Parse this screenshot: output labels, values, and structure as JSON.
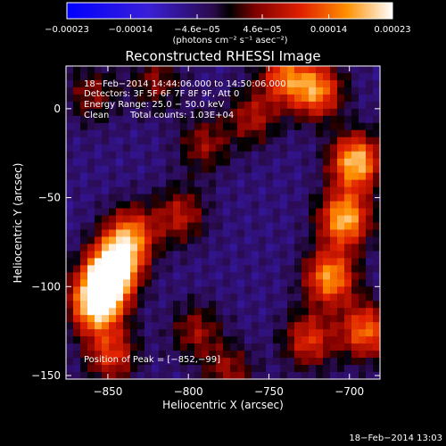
{
  "chart_data": {
    "type": "heatmap",
    "title": "Reconstructed RHESSI Image",
    "xlabel": "Heliocentric X (arcsec)",
    "ylabel": "Heliocentric Y (arcsec)",
    "xlim": [
      -876,
      -681
    ],
    "ylim": [
      -152,
      24
    ],
    "xticks": [
      -850,
      -800,
      -750,
      -700
    ],
    "xtick_labels": [
      "−850",
      "−800",
      "−750",
      "−700"
    ],
    "yticks": [
      0,
      -50,
      -100,
      -150
    ],
    "ytick_labels": [
      "0",
      "−50",
      "−100",
      "−150"
    ],
    "grid": false,
    "colorbar": {
      "range": [
        -0.00023,
        0.00023
      ],
      "ticks": [
        -0.00023,
        -0.00014,
        -4.6e-05,
        4.6e-05,
        0.00014,
        0.00023
      ],
      "tick_labels": [
        "−0.00023",
        "−0.00014",
        "−4.6e−05",
        "4.6e−05",
        "0.00014",
        "0.00023"
      ],
      "unit_label": "(photons cm⁻² s⁻¹ asec⁻²)"
    },
    "annotations": [
      "18−Feb−2014 14:44:06.000 to 14:50:06.000",
      "Detectors: 3F 5F 6F 7F 8F 9F, Att 0",
      "Energy Range: 25.0 − 50.0 keV",
      "Clean",
      "Total counts: 1.03E+04",
      "Position of Peak = [−852,−99]"
    ],
    "peak": {
      "x": -852,
      "y": -99
    },
    "bright_regions": [
      {
        "x": -852,
        "y": -99,
        "value": 0.00023
      },
      {
        "x": -844,
        "y": -85,
        "value": 0.00018
      },
      {
        "x": -858,
        "y": -112,
        "value": 0.00016
      },
      {
        "x": -835,
        "y": -70,
        "value": 0.00011
      },
      {
        "x": -848,
        "y": -138,
        "value": 0.0001
      },
      {
        "x": -696,
        "y": -30,
        "value": 0.0002
      },
      {
        "x": -703,
        "y": -62,
        "value": 0.00019
      },
      {
        "x": -712,
        "y": -95,
        "value": 0.00017
      },
      {
        "x": -720,
        "y": 10,
        "value": 0.00015
      },
      {
        "x": -740,
        "y": 18,
        "value": 0.00012
      },
      {
        "x": -690,
        "y": -125,
        "value": 0.00014
      },
      {
        "x": -725,
        "y": -130,
        "value": 0.0001
      },
      {
        "x": -805,
        "y": -60,
        "value": 7e-05
      },
      {
        "x": -760,
        "y": -5,
        "value": 6e-05
      },
      {
        "x": -790,
        "y": -20,
        "value": 5e-05
      },
      {
        "x": -795,
        "y": -125,
        "value": 5e-05
      },
      {
        "x": -775,
        "y": -148,
        "value": 5e-05
      },
      {
        "x": -860,
        "y": 8,
        "value": 4e-05
      },
      {
        "x": -820,
        "y": 15,
        "value": 4e-05
      }
    ],
    "background_value": -5e-05
  },
  "footer": {
    "timestamp": "18−Feb−2014 13:03"
  }
}
